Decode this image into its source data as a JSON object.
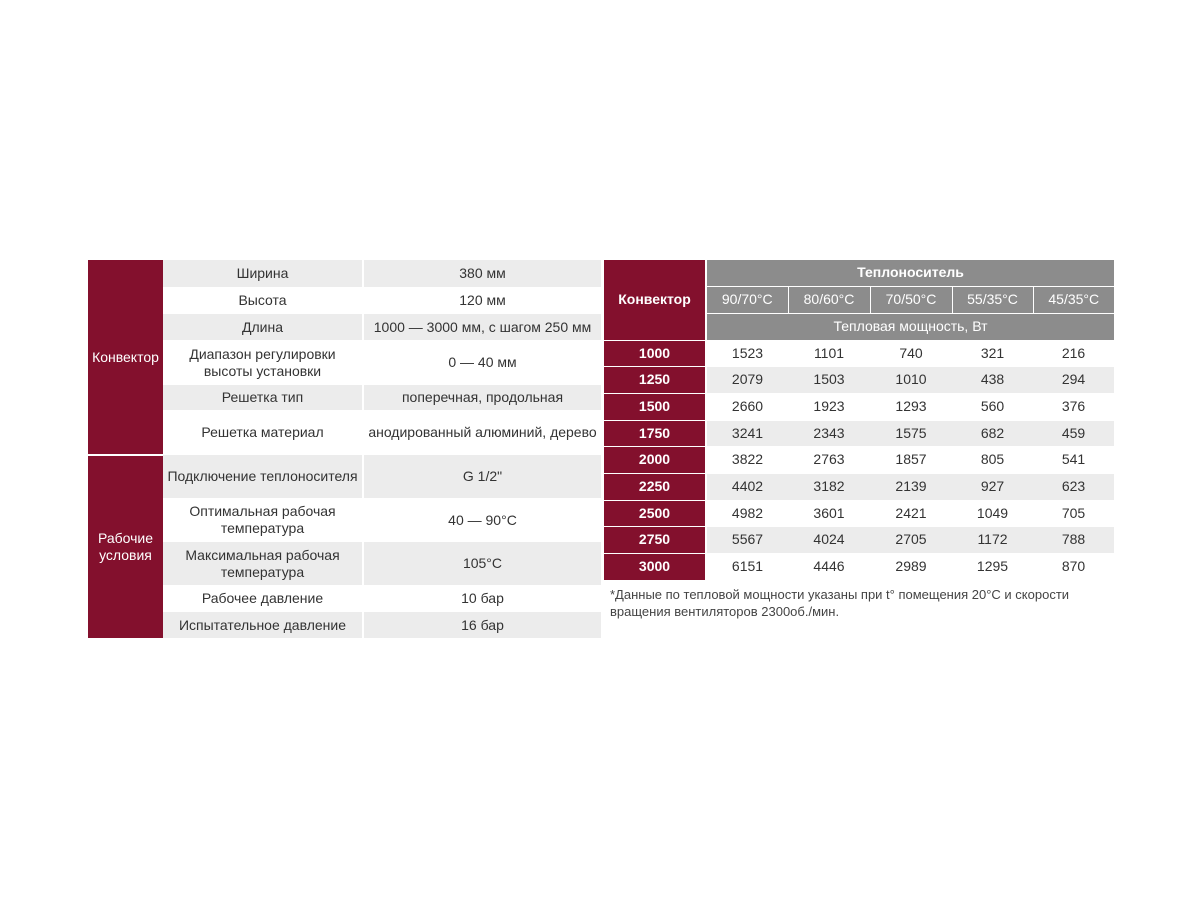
{
  "specs": {
    "groups": [
      {
        "label": "Конвектор",
        "rows": [
          {
            "param": "Ширина",
            "value": "380 мм"
          },
          {
            "param": "Высота",
            "value": "120 мм"
          },
          {
            "param": "Длина",
            "value": "1000 — 3000 мм, с шагом 250 мм"
          },
          {
            "param": "Диапазон регулировки высоты установки",
            "value": "0 — 40 мм"
          },
          {
            "param": "Решетка тип",
            "value": "поперечная, продольная"
          },
          {
            "param": "Решетка материал",
            "value": "анодированный алюминий, дерево"
          }
        ]
      },
      {
        "label": "Рабочие условия",
        "rows": [
          {
            "param": "Подключение теплоносителя",
            "value": "G 1/2\""
          },
          {
            "param": "Оптимальная рабочая температура",
            "value": "40 — 90°С"
          },
          {
            "param": "Максимальная рабочая температура",
            "value": "105°С"
          },
          {
            "param": "Рабочее давление",
            "value": "10 бар"
          },
          {
            "param": "Испытательное давление",
            "value": "16 бар"
          }
        ]
      }
    ]
  },
  "power": {
    "convector_header": "Конвектор",
    "coolant_header": "Теплоноситель",
    "temps": [
      "90/70°С",
      "80/60°С",
      "70/50°С",
      "55/35°С",
      "45/35°С"
    ],
    "power_header": "Тепловая мощность, Вт",
    "rows": [
      {
        "length": "1000",
        "values": [
          "1523",
          "1101",
          "740",
          "321",
          "216"
        ]
      },
      {
        "length": "1250",
        "values": [
          "2079",
          "1503",
          "1010",
          "438",
          "294"
        ]
      },
      {
        "length": "1500",
        "values": [
          "2660",
          "1923",
          "1293",
          "560",
          "376"
        ]
      },
      {
        "length": "1750",
        "values": [
          "3241",
          "2343",
          "1575",
          "682",
          "459"
        ]
      },
      {
        "length": "2000",
        "values": [
          "3822",
          "2763",
          "1857",
          "805",
          "541"
        ]
      },
      {
        "length": "2250",
        "values": [
          "4402",
          "3182",
          "2139",
          "927",
          "623"
        ]
      },
      {
        "length": "2500",
        "values": [
          "4982",
          "3601",
          "2421",
          "1049",
          "705"
        ]
      },
      {
        "length": "2750",
        "values": [
          "5567",
          "4024",
          "2705",
          "1172",
          "788"
        ]
      },
      {
        "length": "3000",
        "values": [
          "6151",
          "4446",
          "2989",
          "1295",
          "870"
        ]
      }
    ],
    "footnote": "*Данные по тепловой мощности указаны при t° помещения 20°С и скорости вращения вентиляторов 2300об./мин."
  }
}
